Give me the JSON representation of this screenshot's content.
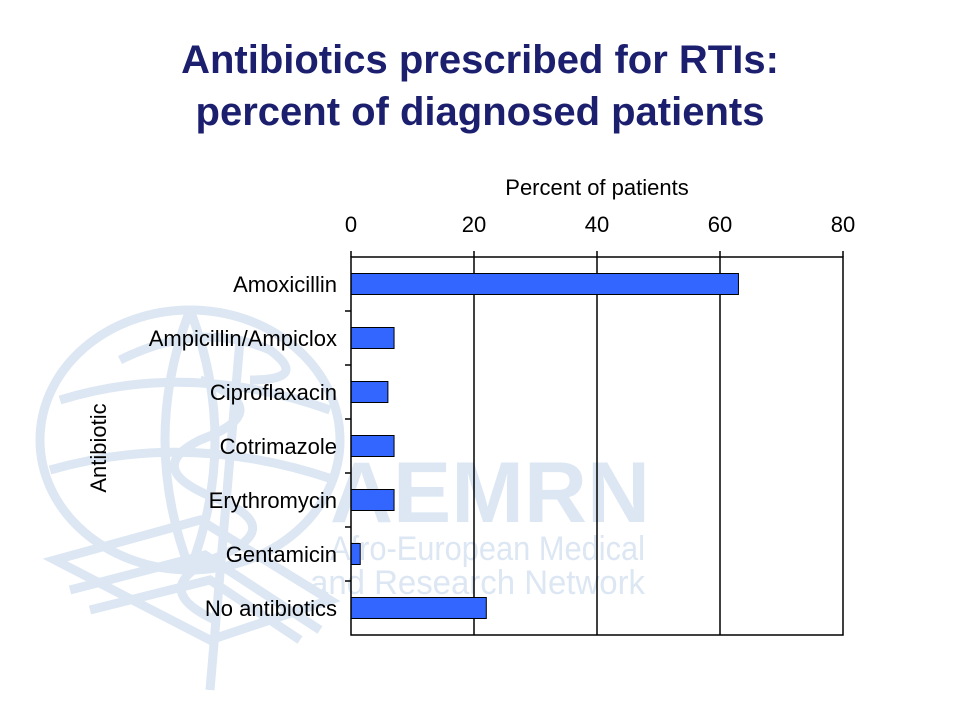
{
  "slide": {
    "title_line1": "Antibiotics prescribed for RTIs:",
    "title_line2": "percent of diagnosed patients"
  },
  "watermark": {
    "logo_text": "AEMRN",
    "line1": "Afro-European Medical",
    "line2": "and  Research Network",
    "logo_icon": "caduceus-book-globe-icon",
    "color": "#dce7f3"
  },
  "chart_data": {
    "type": "bar",
    "orientation": "horizontal",
    "xlabel": "Percent of patients",
    "ylabel": "Antibiotic",
    "xlim": [
      0,
      80
    ],
    "xticks": [
      0,
      20,
      40,
      60,
      80
    ],
    "x_axis_position": "top",
    "grid": "vertical",
    "bar_color": "#3366ff",
    "categories": [
      "Amoxicillin",
      "Ampicillin/Ampiclox",
      "Ciproflaxacin",
      "Cotrimazole",
      "Erythromycin",
      "Gentamicin",
      "No antibiotics"
    ],
    "values": [
      63,
      7,
      6,
      7,
      7,
      1.5,
      22
    ]
  }
}
